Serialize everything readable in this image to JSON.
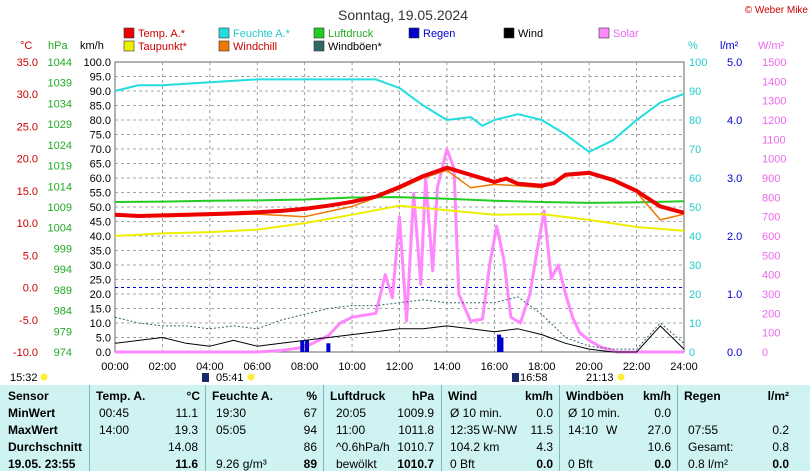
{
  "title": "Sonntag, 19.05.2024",
  "credit": "© Weber Mike",
  "colors": {
    "temp": "#ee0000",
    "feuchte": "#22dddd",
    "luftdruck": "#22cc22",
    "taupunkt": "#eeee00",
    "windchill": "#ee7700",
    "wind": "#000000",
    "windboeen": "#336666",
    "regen": "#0000cc",
    "solar": "#ff88ff"
  },
  "axes": {
    "celsius": {
      "unit": "°C",
      "ticks": [
        "35.0",
        "30.0",
        "25.0",
        "20.0",
        "15.0",
        "10.0",
        "5.0",
        "0.0",
        "-5.0",
        "-10.0"
      ]
    },
    "hpa": {
      "unit": "hPa",
      "ticks": [
        "1044",
        "1039",
        "1034",
        "1029",
        "1024",
        "1019",
        "1014",
        "1009",
        "1004",
        "999",
        "994",
        "989",
        "984",
        "979",
        "974"
      ]
    },
    "kmh": {
      "unit": "km/h",
      "ticks": [
        "100.0",
        "95.0",
        "90.0",
        "85.0",
        "80.0",
        "75.0",
        "70.0",
        "65.0",
        "60.0",
        "55.0",
        "50.0",
        "45.0",
        "40.0",
        "35.0",
        "30.0",
        "25.0",
        "20.0",
        "15.0",
        "10.0",
        "5.0",
        "0.0"
      ]
    },
    "percent": {
      "unit": "%",
      "ticks": [
        "100",
        "90",
        "80",
        "70",
        "60",
        "50",
        "40",
        "30",
        "20",
        "10",
        "0"
      ]
    },
    "lm2": {
      "unit": "l/m²",
      "ticks": [
        "5.0",
        "4.0",
        "3.0",
        "2.0",
        "1.0",
        "0.0"
      ]
    },
    "wm2": {
      "unit": "W/m²",
      "ticks": [
        "1500",
        "1400",
        "1300",
        "1200",
        "1100",
        "1000",
        "900",
        "800",
        "700",
        "600",
        "500",
        "400",
        "300",
        "200",
        "100",
        "0"
      ]
    },
    "x_ticks": [
      "00:00",
      "02:00",
      "04:00",
      "06:00",
      "08:00",
      "10:00",
      "12:00",
      "14:00",
      "16:00",
      "18:00",
      "20:00",
      "22:00",
      "24:00"
    ]
  },
  "legend": [
    {
      "key": "temp",
      "label": "Temp. A.*"
    },
    {
      "key": "feuchte",
      "label": "Feuchte A.*"
    },
    {
      "key": "luftdruck",
      "label": "Luftdruck"
    },
    {
      "key": "regen",
      "label": "Regen"
    },
    {
      "key": "wind",
      "label": "Wind"
    },
    {
      "key": "solar",
      "label": "Solar"
    },
    {
      "key": "taupunkt",
      "label": "Taupunkt*"
    },
    {
      "key": "windchill",
      "label": "Windchill"
    },
    {
      "key": "windboeen",
      "label": "Windböen*"
    }
  ],
  "sun": {
    "sunrise_label": "05:41",
    "sunset_label": "21:13",
    "left_time": "15:32",
    "moon_time": "16:58"
  },
  "chart_data": {
    "type": "line",
    "x_unit": "hours",
    "xlim": [
      0,
      24
    ],
    "series": [
      {
        "name": "Temp. A.*",
        "unit": "°C",
        "points": [
          [
            0,
            11.3
          ],
          [
            1,
            11.1
          ],
          [
            2,
            11.2
          ],
          [
            3,
            11.3
          ],
          [
            4,
            11.4
          ],
          [
            5,
            11.5
          ],
          [
            6,
            11.7
          ],
          [
            7,
            11.9
          ],
          [
            8,
            12.2
          ],
          [
            9,
            12.7
          ],
          [
            10,
            13.3
          ],
          [
            11,
            14.1
          ],
          [
            12,
            15.6
          ],
          [
            13,
            17.3
          ],
          [
            14,
            18.6
          ],
          [
            15,
            17.5
          ],
          [
            16,
            16.4
          ],
          [
            16.5,
            16.9
          ],
          [
            17,
            16.1
          ],
          [
            18,
            15.8
          ],
          [
            18.5,
            16.2
          ],
          [
            19,
            17.5
          ],
          [
            20,
            17.8
          ],
          [
            21,
            16.7
          ],
          [
            22,
            15.0
          ],
          [
            23,
            12.6
          ],
          [
            24,
            11.6
          ]
        ]
      },
      {
        "name": "Feuchte A.*",
        "unit": "%",
        "points": [
          [
            0,
            90
          ],
          [
            1,
            92
          ],
          [
            2,
            92
          ],
          [
            4,
            93
          ],
          [
            6,
            94
          ],
          [
            8,
            94
          ],
          [
            10,
            94
          ],
          [
            11,
            94
          ],
          [
            12,
            91
          ],
          [
            13,
            85
          ],
          [
            14,
            80
          ],
          [
            15,
            81
          ],
          [
            15.5,
            78
          ],
          [
            16,
            80
          ],
          [
            17,
            82
          ],
          [
            18,
            80
          ],
          [
            19,
            75
          ],
          [
            20,
            69
          ],
          [
            21,
            73
          ],
          [
            22,
            80
          ],
          [
            23,
            86
          ],
          [
            24,
            89
          ]
        ]
      },
      {
        "name": "Luftdruck",
        "unit": "hPa",
        "points": [
          [
            0,
            1010.2
          ],
          [
            2,
            1010.3
          ],
          [
            4,
            1010.5
          ],
          [
            6,
            1010.6
          ],
          [
            8,
            1010.8
          ],
          [
            10,
            1011.3
          ],
          [
            12,
            1011.4
          ],
          [
            14,
            1011.0
          ],
          [
            16,
            1010.5
          ],
          [
            18,
            1010.2
          ],
          [
            20,
            1010.0
          ],
          [
            22,
            1010.1
          ],
          [
            24,
            1010.4
          ]
        ]
      },
      {
        "name": "Taupunkt*",
        "unit": "°C",
        "points": [
          [
            0,
            8.0
          ],
          [
            2,
            8.4
          ],
          [
            4,
            8.6
          ],
          [
            6,
            9.0
          ],
          [
            8,
            10.0
          ],
          [
            10,
            11.3
          ],
          [
            12,
            12.7
          ],
          [
            14,
            12.0
          ],
          [
            16,
            11.3
          ],
          [
            18,
            11.4
          ],
          [
            20,
            10.5
          ],
          [
            22,
            9.4
          ],
          [
            24,
            8.8
          ]
        ]
      },
      {
        "name": "Windchill",
        "unit": "°C",
        "points": [
          [
            0,
            11.1
          ],
          [
            2,
            11.0
          ],
          [
            4,
            11.2
          ],
          [
            6,
            11.4
          ],
          [
            8,
            11.0
          ],
          [
            10,
            12.6
          ],
          [
            12,
            15.3
          ],
          [
            13,
            17.0
          ],
          [
            14,
            18.2
          ],
          [
            15,
            15.5
          ],
          [
            16,
            16.0
          ],
          [
            17,
            15.8
          ],
          [
            18,
            15.5
          ],
          [
            19,
            17.3
          ],
          [
            20,
            17.6
          ],
          [
            21,
            16.5
          ],
          [
            22,
            14.8
          ],
          [
            23,
            10.5
          ],
          [
            24,
            11.4
          ]
        ]
      },
      {
        "name": "Wind",
        "unit": "km/h",
        "points": [
          [
            0,
            3
          ],
          [
            1,
            4
          ],
          [
            2,
            5
          ],
          [
            3,
            3
          ],
          [
            4,
            2
          ],
          [
            5,
            4
          ],
          [
            6,
            2
          ],
          [
            7,
            3
          ],
          [
            8,
            4
          ],
          [
            9,
            5
          ],
          [
            10,
            6
          ],
          [
            11,
            7
          ],
          [
            12,
            8
          ],
          [
            13,
            8
          ],
          [
            14,
            9
          ],
          [
            15,
            8
          ],
          [
            16,
            7
          ],
          [
            17,
            8
          ],
          [
            18,
            6
          ],
          [
            19,
            3
          ],
          [
            20,
            1
          ],
          [
            21,
            0
          ],
          [
            22,
            0
          ],
          [
            23,
            9
          ],
          [
            24,
            1
          ]
        ]
      },
      {
        "name": "Windböen*",
        "unit": "km/h",
        "points": [
          [
            0,
            12
          ],
          [
            1,
            10
          ],
          [
            2,
            9
          ],
          [
            3,
            9
          ],
          [
            4,
            8
          ],
          [
            5,
            9
          ],
          [
            6,
            8
          ],
          [
            7,
            11
          ],
          [
            8,
            13
          ],
          [
            9,
            15
          ],
          [
            10,
            16
          ],
          [
            11,
            16
          ],
          [
            12,
            17
          ],
          [
            13,
            18
          ],
          [
            14,
            17
          ],
          [
            15,
            17
          ],
          [
            16,
            17
          ],
          [
            17,
            19
          ],
          [
            18,
            13
          ],
          [
            19,
            5
          ],
          [
            20,
            2
          ],
          [
            21,
            1
          ],
          [
            22,
            1
          ],
          [
            23,
            10
          ],
          [
            24,
            3
          ]
        ]
      },
      {
        "name": "Solar",
        "unit": "W/m²",
        "points": [
          [
            0,
            0
          ],
          [
            6,
            0
          ],
          [
            7,
            8
          ],
          [
            8,
            25
          ],
          [
            9,
            85
          ],
          [
            9.5,
            150
          ],
          [
            10,
            180
          ],
          [
            11,
            200
          ],
          [
            11.4,
            400
          ],
          [
            11.7,
            280
          ],
          [
            12,
            700
          ],
          [
            12.3,
            160
          ],
          [
            12.6,
            820
          ],
          [
            12.9,
            350
          ],
          [
            13.1,
            900
          ],
          [
            13.4,
            420
          ],
          [
            13.6,
            850
          ],
          [
            14,
            1050
          ],
          [
            14.3,
            950
          ],
          [
            14.5,
            300
          ],
          [
            15,
            160
          ],
          [
            15.5,
            170
          ],
          [
            15.8,
            450
          ],
          [
            16.1,
            650
          ],
          [
            16.4,
            480
          ],
          [
            16.7,
            180
          ],
          [
            17.1,
            150
          ],
          [
            17.5,
            300
          ],
          [
            17.8,
            520
          ],
          [
            18.1,
            730
          ],
          [
            18.4,
            380
          ],
          [
            18.7,
            450
          ],
          [
            19,
            300
          ],
          [
            19.3,
            180
          ],
          [
            19.6,
            100
          ],
          [
            20,
            60
          ],
          [
            20.5,
            25
          ],
          [
            21,
            8
          ],
          [
            21.2,
            0
          ],
          [
            24,
            0
          ]
        ]
      },
      {
        "name": "Regen",
        "unit": "l/m²",
        "points": [
          [
            7.9,
            0.2
          ],
          [
            8.1,
            0.2
          ],
          [
            9.0,
            0.15
          ],
          [
            16.2,
            0.3
          ],
          [
            16.3,
            0.25
          ]
        ]
      }
    ],
    "ylim": {
      "celsius": [
        -10,
        35
      ],
      "hpa": [
        974,
        1044
      ],
      "kmh": [
        0,
        100
      ],
      "percent": [
        0,
        100
      ],
      "lm2": [
        0,
        5
      ],
      "wm2": [
        0,
        1500
      ]
    }
  },
  "table": {
    "headers": [
      "Sensor",
      "Temp. A.",
      "°C",
      "Feuchte A.",
      "%",
      "Luftdruck",
      "hPa",
      "Wind",
      "km/h",
      "Windböen",
      "km/h",
      "Regen",
      "l/m²"
    ],
    "rows": [
      {
        "label": "MinWert",
        "temp_time": "00:45",
        "temp": "11.1",
        "hum_time": "19:30",
        "hum": "67",
        "pres_time": "20:05",
        "pres": "1009.9",
        "wind_time": "Ø 10 min.",
        "wind": "0.0",
        "gust_time": "Ø 10 min.",
        "gust": "0.0",
        "rain_time": "",
        "rain": ""
      },
      {
        "label": "MaxWert",
        "temp_time": "14:00",
        "temp": "19.3",
        "hum_time": "05:05",
        "hum": "94",
        "pres_time": "11:00",
        "pres": "1011.8",
        "wind_time": "12:35",
        "wind_dir": "W-NW",
        "wind": "11.5",
        "gust_time": "14:10",
        "gust_dir": "W",
        "gust": "27.0",
        "rain_time": "07:55",
        "rain": "0.2"
      },
      {
        "label": "Durchschnitt",
        "temp_time": "",
        "temp": "14.08",
        "hum_time": "",
        "hum": "86",
        "pres_time": "^0.6hPa/h",
        "pres": "1010.7",
        "wind_time": "104.2 km",
        "wind": "4.3",
        "gust_time": "",
        "gust": "10.6",
        "rain_time": "Gesamt:",
        "rain": "0.8"
      },
      {
        "label": "19.05. 23:55",
        "temp_time": "",
        "temp": "11.6",
        "hum_time": "9.26 g/m³",
        "hum": "89",
        "pres_time": "bewölkt",
        "pres": "1010.7",
        "wind_time": "0 Bft",
        "wind": "0.0",
        "gust_time": "0 Bft",
        "gust": "0.0",
        "rain_time": "0.8 l/m²",
        "rain": "0.0"
      }
    ]
  }
}
